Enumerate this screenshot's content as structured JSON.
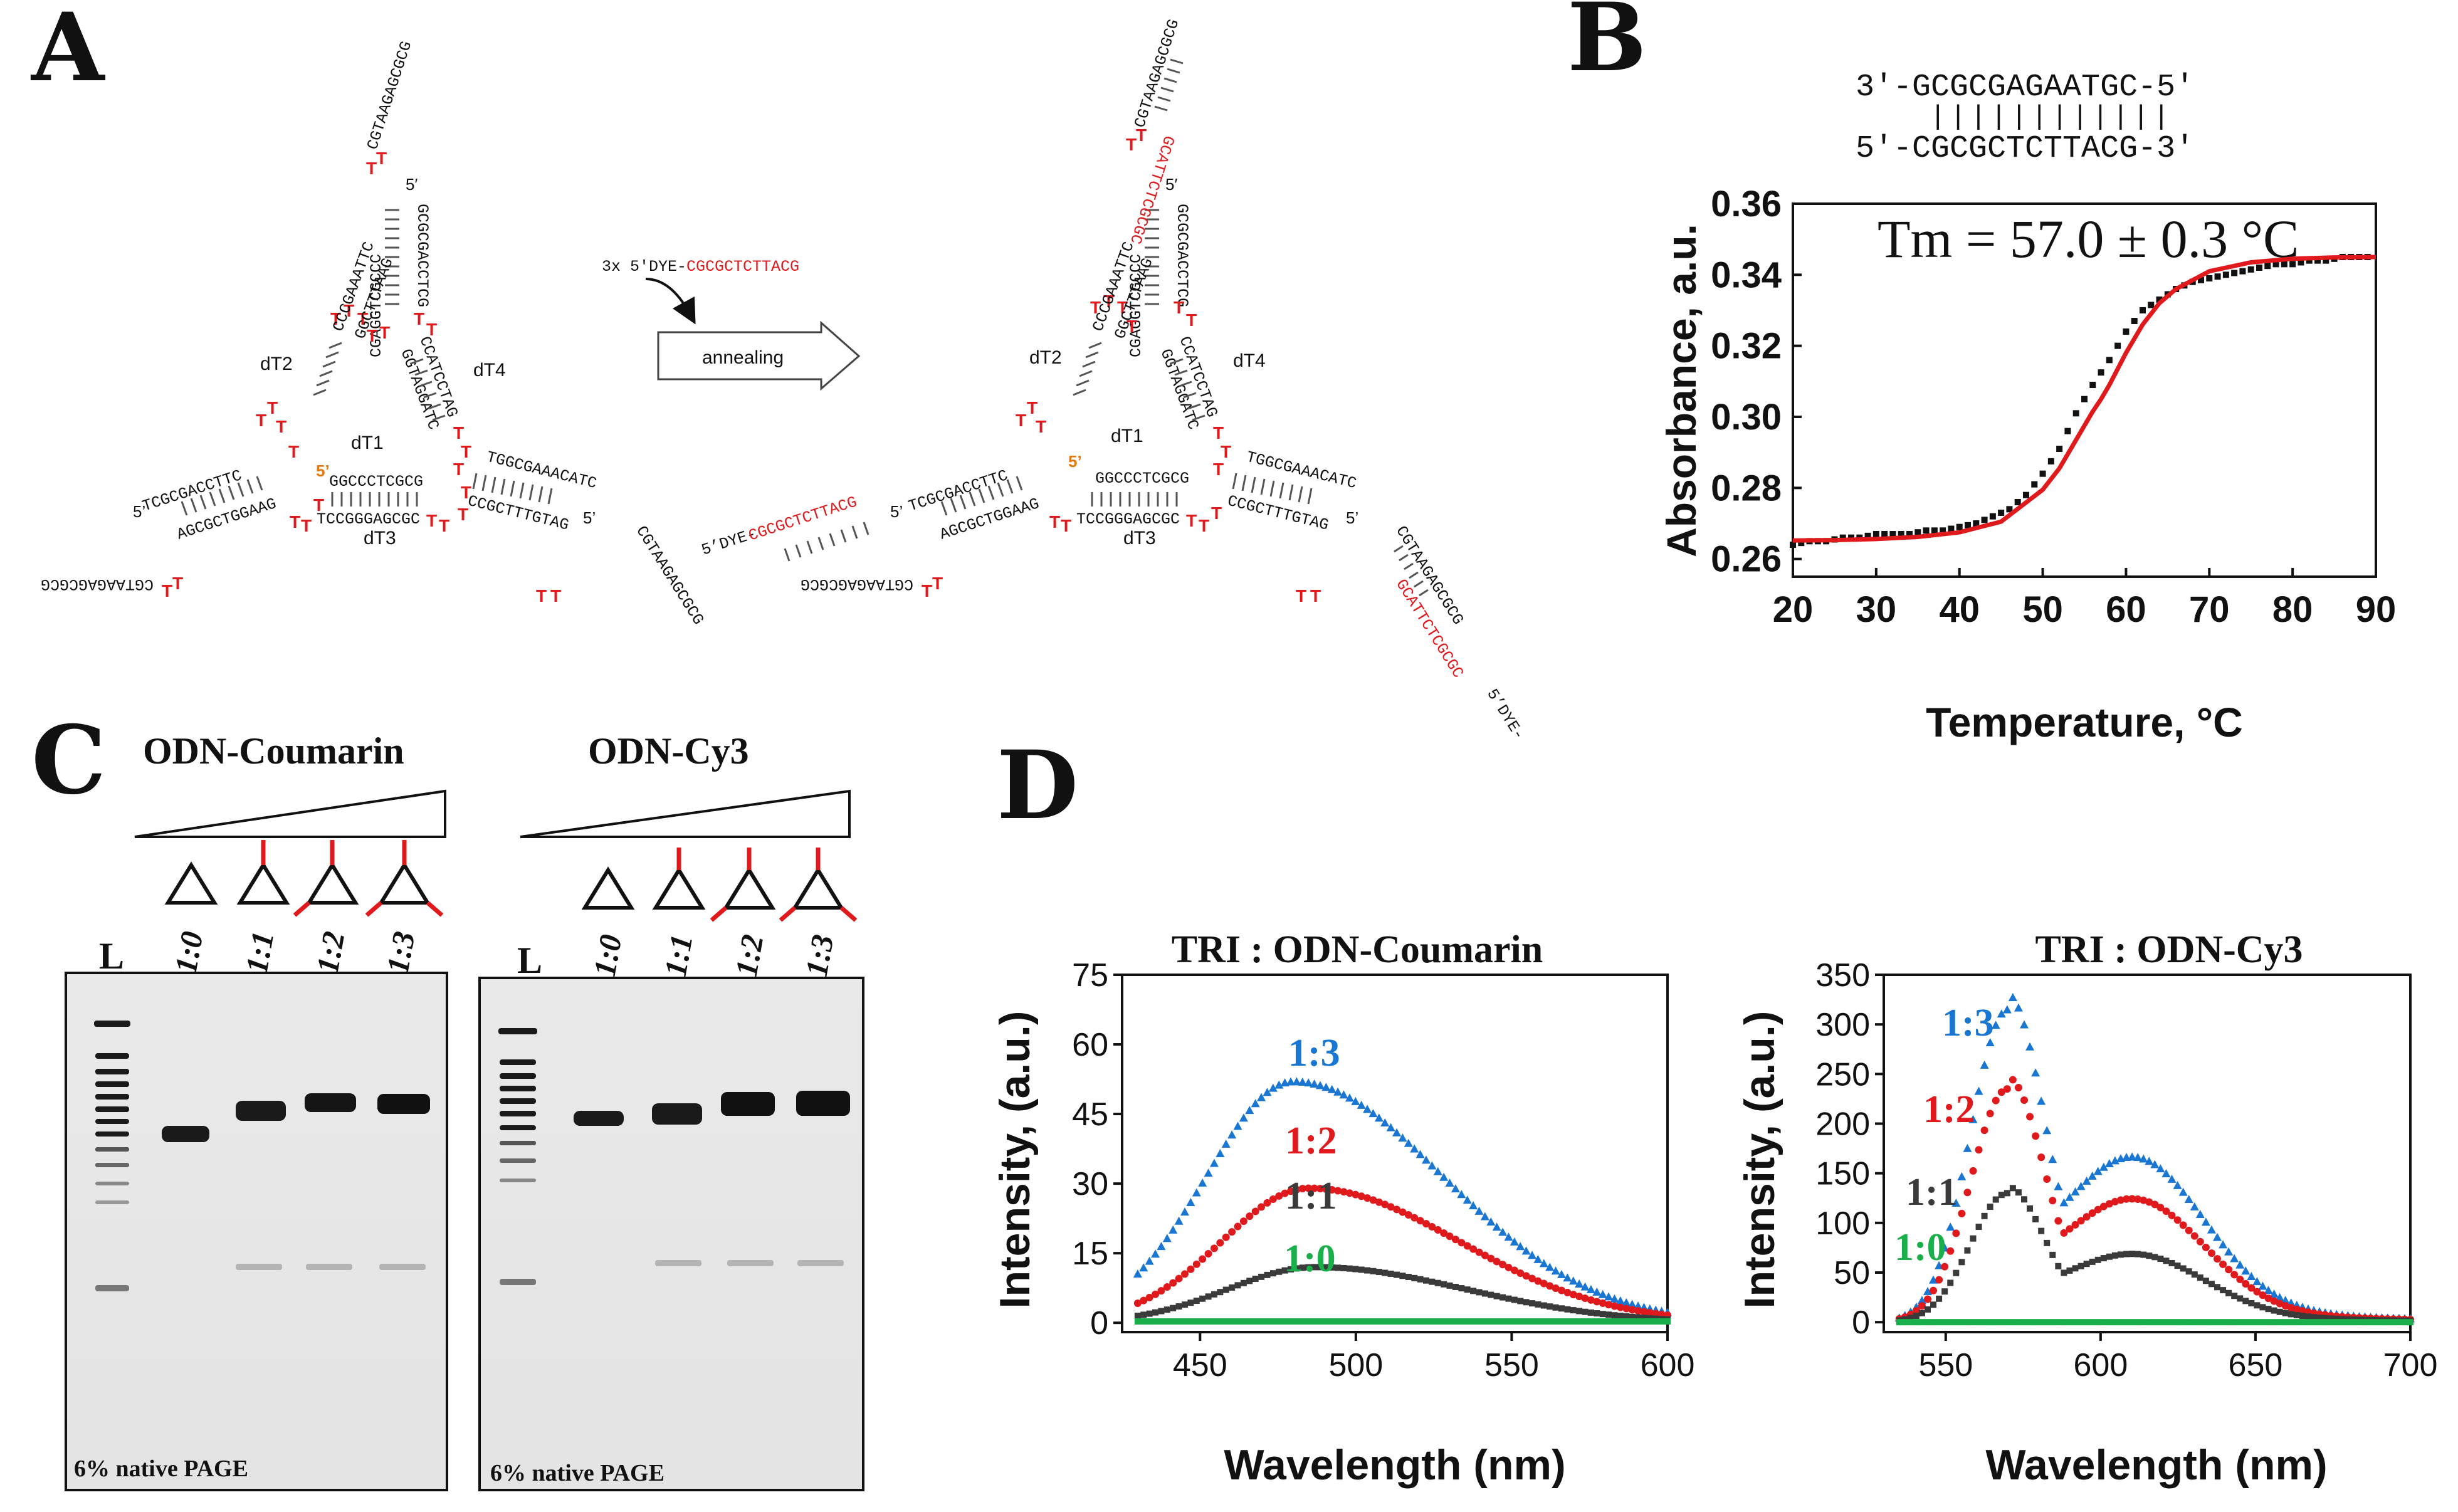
{
  "panels": {
    "A": "A",
    "B": "B",
    "C": "C",
    "D": "D"
  },
  "panel_a": {
    "arm_labels": [
      "dT2",
      "dT4",
      "dT1",
      "dT3"
    ],
    "five_prime": "5′",
    "five_prime_short": "5’",
    "five_prime_left": "5’",
    "five_prime_dye": "5’DYE-",
    "three_x": "3x 5′DYE-",
    "dye_seq": "CGCGCTCTTACG",
    "arrow_label": "annealing",
    "red_T": "T",
    "seqs": {
      "top_tail": "CGTAAGAGCGCG",
      "top_left": "CGAGGTCGCCC",
      "top_right": "GCGCGACCTCG",
      "left_tri_a": "CCCGAAATTC",
      "left_tri_b": "GGCTTTAAG",
      "right_tri_a": "CCATCCTAG",
      "right_tri_b": "GGTAGGATC",
      "bottom_tri_a": "GGCCCTCGCG",
      "bottom_tri_b": "TCCGGGAGCGC",
      "left_arm_a": "TCGCGACCTTC",
      "left_arm_b": "AGCGCTGGAAG",
      "left_tail": "CGTAAGAGCGCG",
      "right_arm_a": "TGGCGAAACATC",
      "right_arm_b": "CCGCTTTGTAG",
      "right_tail": "CGTAAGAGCGCG",
      "dye_rev": "GCATTCTCGCGC"
    }
  },
  "panel_b": {
    "duplex_top": "3′-GCGCGAGAATGC-5′",
    "duplex_bonds": "||||||||||||",
    "duplex_bottom": "5′-CGCGCTCTTACG-3′",
    "tm_label": "Tm = 57.0 ± 0.3 °C"
  },
  "panel_c": {
    "gel1_title": "ODN-Coumarin",
    "gel2_title": "ODN-Cy3",
    "ladder": "L",
    "lanes": [
      "1:0",
      "1:1",
      "1:2",
      "1:3"
    ],
    "gel_note": "6% native PAGE"
  },
  "colors": {
    "red": "#e0191d",
    "blue": "#1976d2",
    "dark": "#3a3a3a",
    "green": "#19b04b",
    "orange": "#e6790b"
  },
  "chart_data": [
    {
      "type": "scatter",
      "title": "",
      "xlabel": "Temperature, °C",
      "ylabel": "Absorbance, a.u.",
      "xlim": [
        20,
        90
      ],
      "ylim": [
        0.255,
        0.36
      ],
      "xticks": [
        "20",
        "30",
        "40",
        "50",
        "60",
        "70",
        "80",
        "90"
      ],
      "yticks": [
        "0.26",
        "0.28",
        "0.30",
        "0.32",
        "0.34",
        "0.36"
      ],
      "series": [
        {
          "name": "data",
          "x": [
            20,
            22,
            24,
            26,
            28,
            30,
            32,
            34,
            36,
            38,
            40,
            42,
            44,
            46,
            48,
            50,
            52,
            54,
            56,
            58,
            60,
            62,
            64,
            66,
            68,
            70,
            72,
            74,
            76,
            78,
            80,
            82,
            84,
            86,
            88,
            90
          ],
          "values": [
            0.264,
            0.265,
            0.265,
            0.266,
            0.266,
            0.267,
            0.267,
            0.267,
            0.268,
            0.268,
            0.269,
            0.27,
            0.272,
            0.274,
            0.278,
            0.284,
            0.291,
            0.301,
            0.309,
            0.316,
            0.324,
            0.33,
            0.333,
            0.336,
            0.338,
            0.339,
            0.34,
            0.341,
            0.342,
            0.343,
            0.343,
            0.344,
            0.344,
            0.345,
            0.345,
            0.345
          ]
        },
        {
          "name": "fit",
          "x": [
            20,
            25,
            30,
            35,
            40,
            45,
            50,
            52,
            54,
            56,
            57,
            58,
            60,
            62,
            64,
            66,
            70,
            75,
            80,
            85,
            90
          ],
          "values": [
            0.2652,
            0.2653,
            0.2656,
            0.2662,
            0.2675,
            0.2705,
            0.2795,
            0.2855,
            0.2935,
            0.3015,
            0.305,
            0.309,
            0.318,
            0.326,
            0.332,
            0.336,
            0.341,
            0.3435,
            0.3445,
            0.3449,
            0.345
          ]
        }
      ]
    },
    {
      "type": "scatter",
      "title": "TRI : ODN-Coumarin",
      "xlabel": "Wavelength (nm)",
      "ylabel": "Intensity, (a.u.)",
      "xlim": [
        425,
        600
      ],
      "ylim": [
        -2,
        75
      ],
      "xticks": [
        "450",
        "500",
        "550",
        "600"
      ],
      "yticks": [
        "0",
        "15",
        "30",
        "45",
        "60",
        "75"
      ],
      "labels": [
        "1:3",
        "1:2",
        "1:1",
        "1:0"
      ],
      "series": [
        {
          "name": "1:3",
          "peak": 52,
          "center": 480
        },
        {
          "name": "1:2",
          "peak": 29,
          "center": 485
        },
        {
          "name": "1:1",
          "peak": 12,
          "center": 487
        },
        {
          "name": "1:0",
          "peak": 0,
          "center": 485
        }
      ]
    },
    {
      "type": "scatter",
      "title": "TRI : ODN-Cy3",
      "xlabel": "Wavelength (nm)",
      "ylabel": "Intensity, (a.u.)",
      "xlim": [
        530,
        700
      ],
      "ylim": [
        -10,
        350
      ],
      "xticks": [
        "550",
        "600",
        "650",
        "700"
      ],
      "yticks": [
        "0",
        "50",
        "100",
        "150",
        "200",
        "250",
        "300",
        "350"
      ],
      "labels": [
        "1:3",
        "1:2",
        "1:1",
        "1:0"
      ],
      "series": [
        {
          "name": "1:3",
          "peak": 315,
          "center": 570
        },
        {
          "name": "1:2",
          "peak": 235,
          "center": 570
        },
        {
          "name": "1:1",
          "peak": 130,
          "center": 570
        },
        {
          "name": "1:0",
          "peak": 0,
          "center": 570
        }
      ]
    }
  ]
}
